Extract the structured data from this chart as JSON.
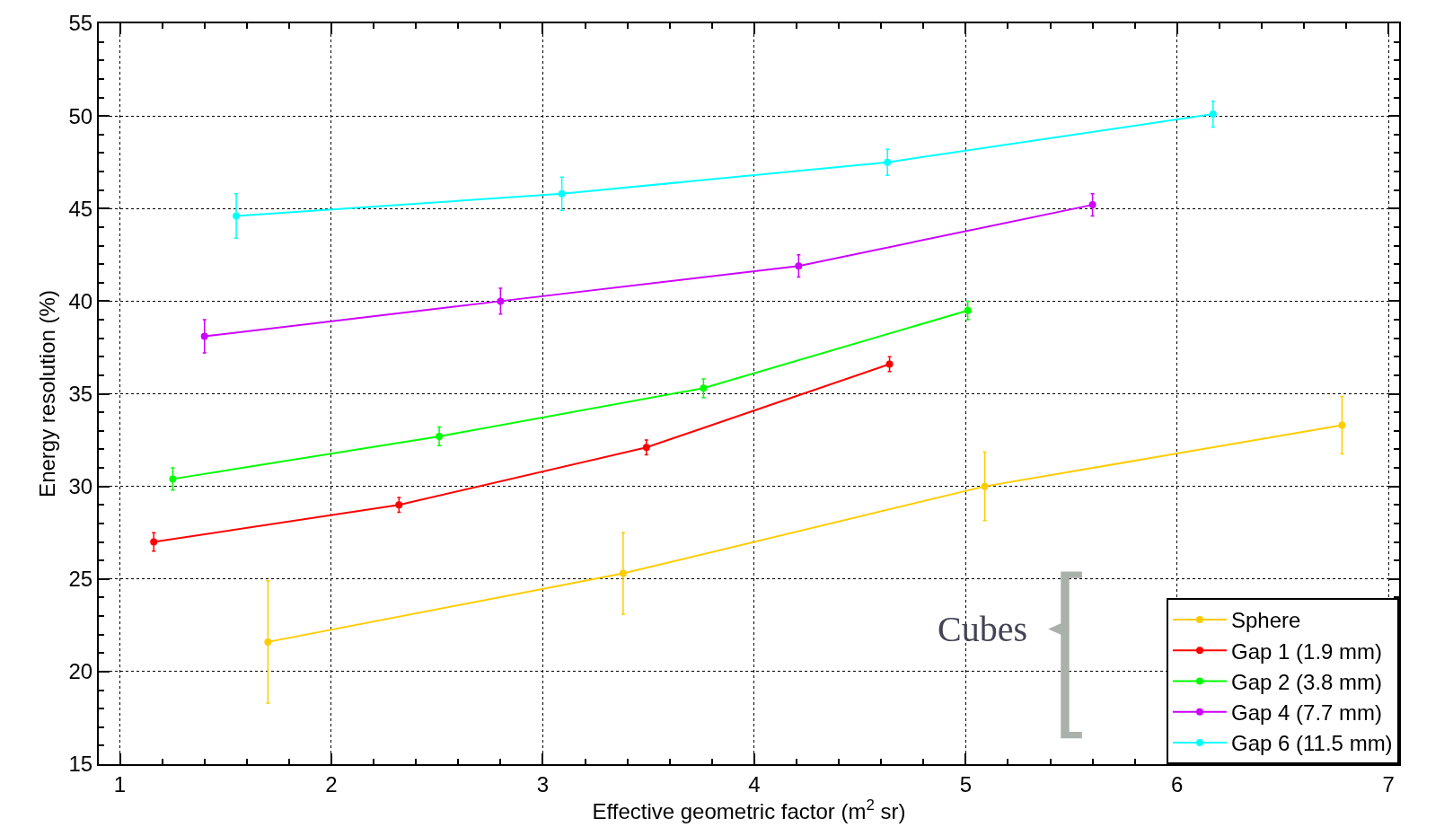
{
  "chart_data": {
    "type": "line",
    "xlabel": "Effective geometric factor (m$^{2}$ sr)",
    "ylabel": "Energy resolution (%)",
    "xlim": [
      0.9,
      7.05
    ],
    "xticks": [
      1,
      2,
      3,
      4,
      5,
      6,
      7
    ],
    "ylim": [
      15,
      55
    ],
    "yticks": [
      15,
      20,
      25,
      30,
      35,
      40,
      45,
      50,
      55
    ],
    "grid": true,
    "legend": "bottom right",
    "marker": "circle",
    "line_style": "solid",
    "annotations": [
      "Cubes"
    ],
    "series": [
      {
        "name": "Sphere",
        "color": "#ffcc00",
        "x": [
          1.7,
          3.38,
          5.09,
          6.78
        ],
        "values": [
          21.6,
          25.3,
          30.0,
          33.3
        ],
        "errors": [
          3.3,
          2.2,
          1.85,
          1.55
        ]
      },
      {
        "name": "Gap 1 (1.9 mm)",
        "color": "#ff0000",
        "x": [
          1.16,
          2.32,
          3.49,
          4.64
        ],
        "values": [
          27.0,
          29.0,
          32.1,
          36.6
        ],
        "errors": [
          0.5,
          0.4,
          0.4,
          0.4
        ]
      },
      {
        "name": "Gap 2 (3.8 mm)",
        "color": "#00ff00",
        "x": [
          1.25,
          2.51,
          3.76,
          5.01
        ],
        "values": [
          30.4,
          32.7,
          35.3,
          39.5
        ],
        "errors": [
          0.6,
          0.5,
          0.5,
          0.5
        ]
      },
      {
        "name": "Gap 4 (7.7 mm)",
        "color": "#cc00ff",
        "x": [
          1.4,
          2.8,
          4.21,
          5.6
        ],
        "values": [
          38.1,
          40.0,
          41.9,
          45.2
        ],
        "errors": [
          0.9,
          0.7,
          0.6,
          0.6
        ]
      },
      {
        "name": "Gap 6 (11.5 mm)",
        "color": "#00ffff",
        "x": [
          1.55,
          3.09,
          4.63,
          6.17
        ],
        "values": [
          44.6,
          45.8,
          47.5,
          50.1
        ],
        "errors": [
          1.2,
          0.9,
          0.7,
          0.7
        ]
      }
    ]
  }
}
